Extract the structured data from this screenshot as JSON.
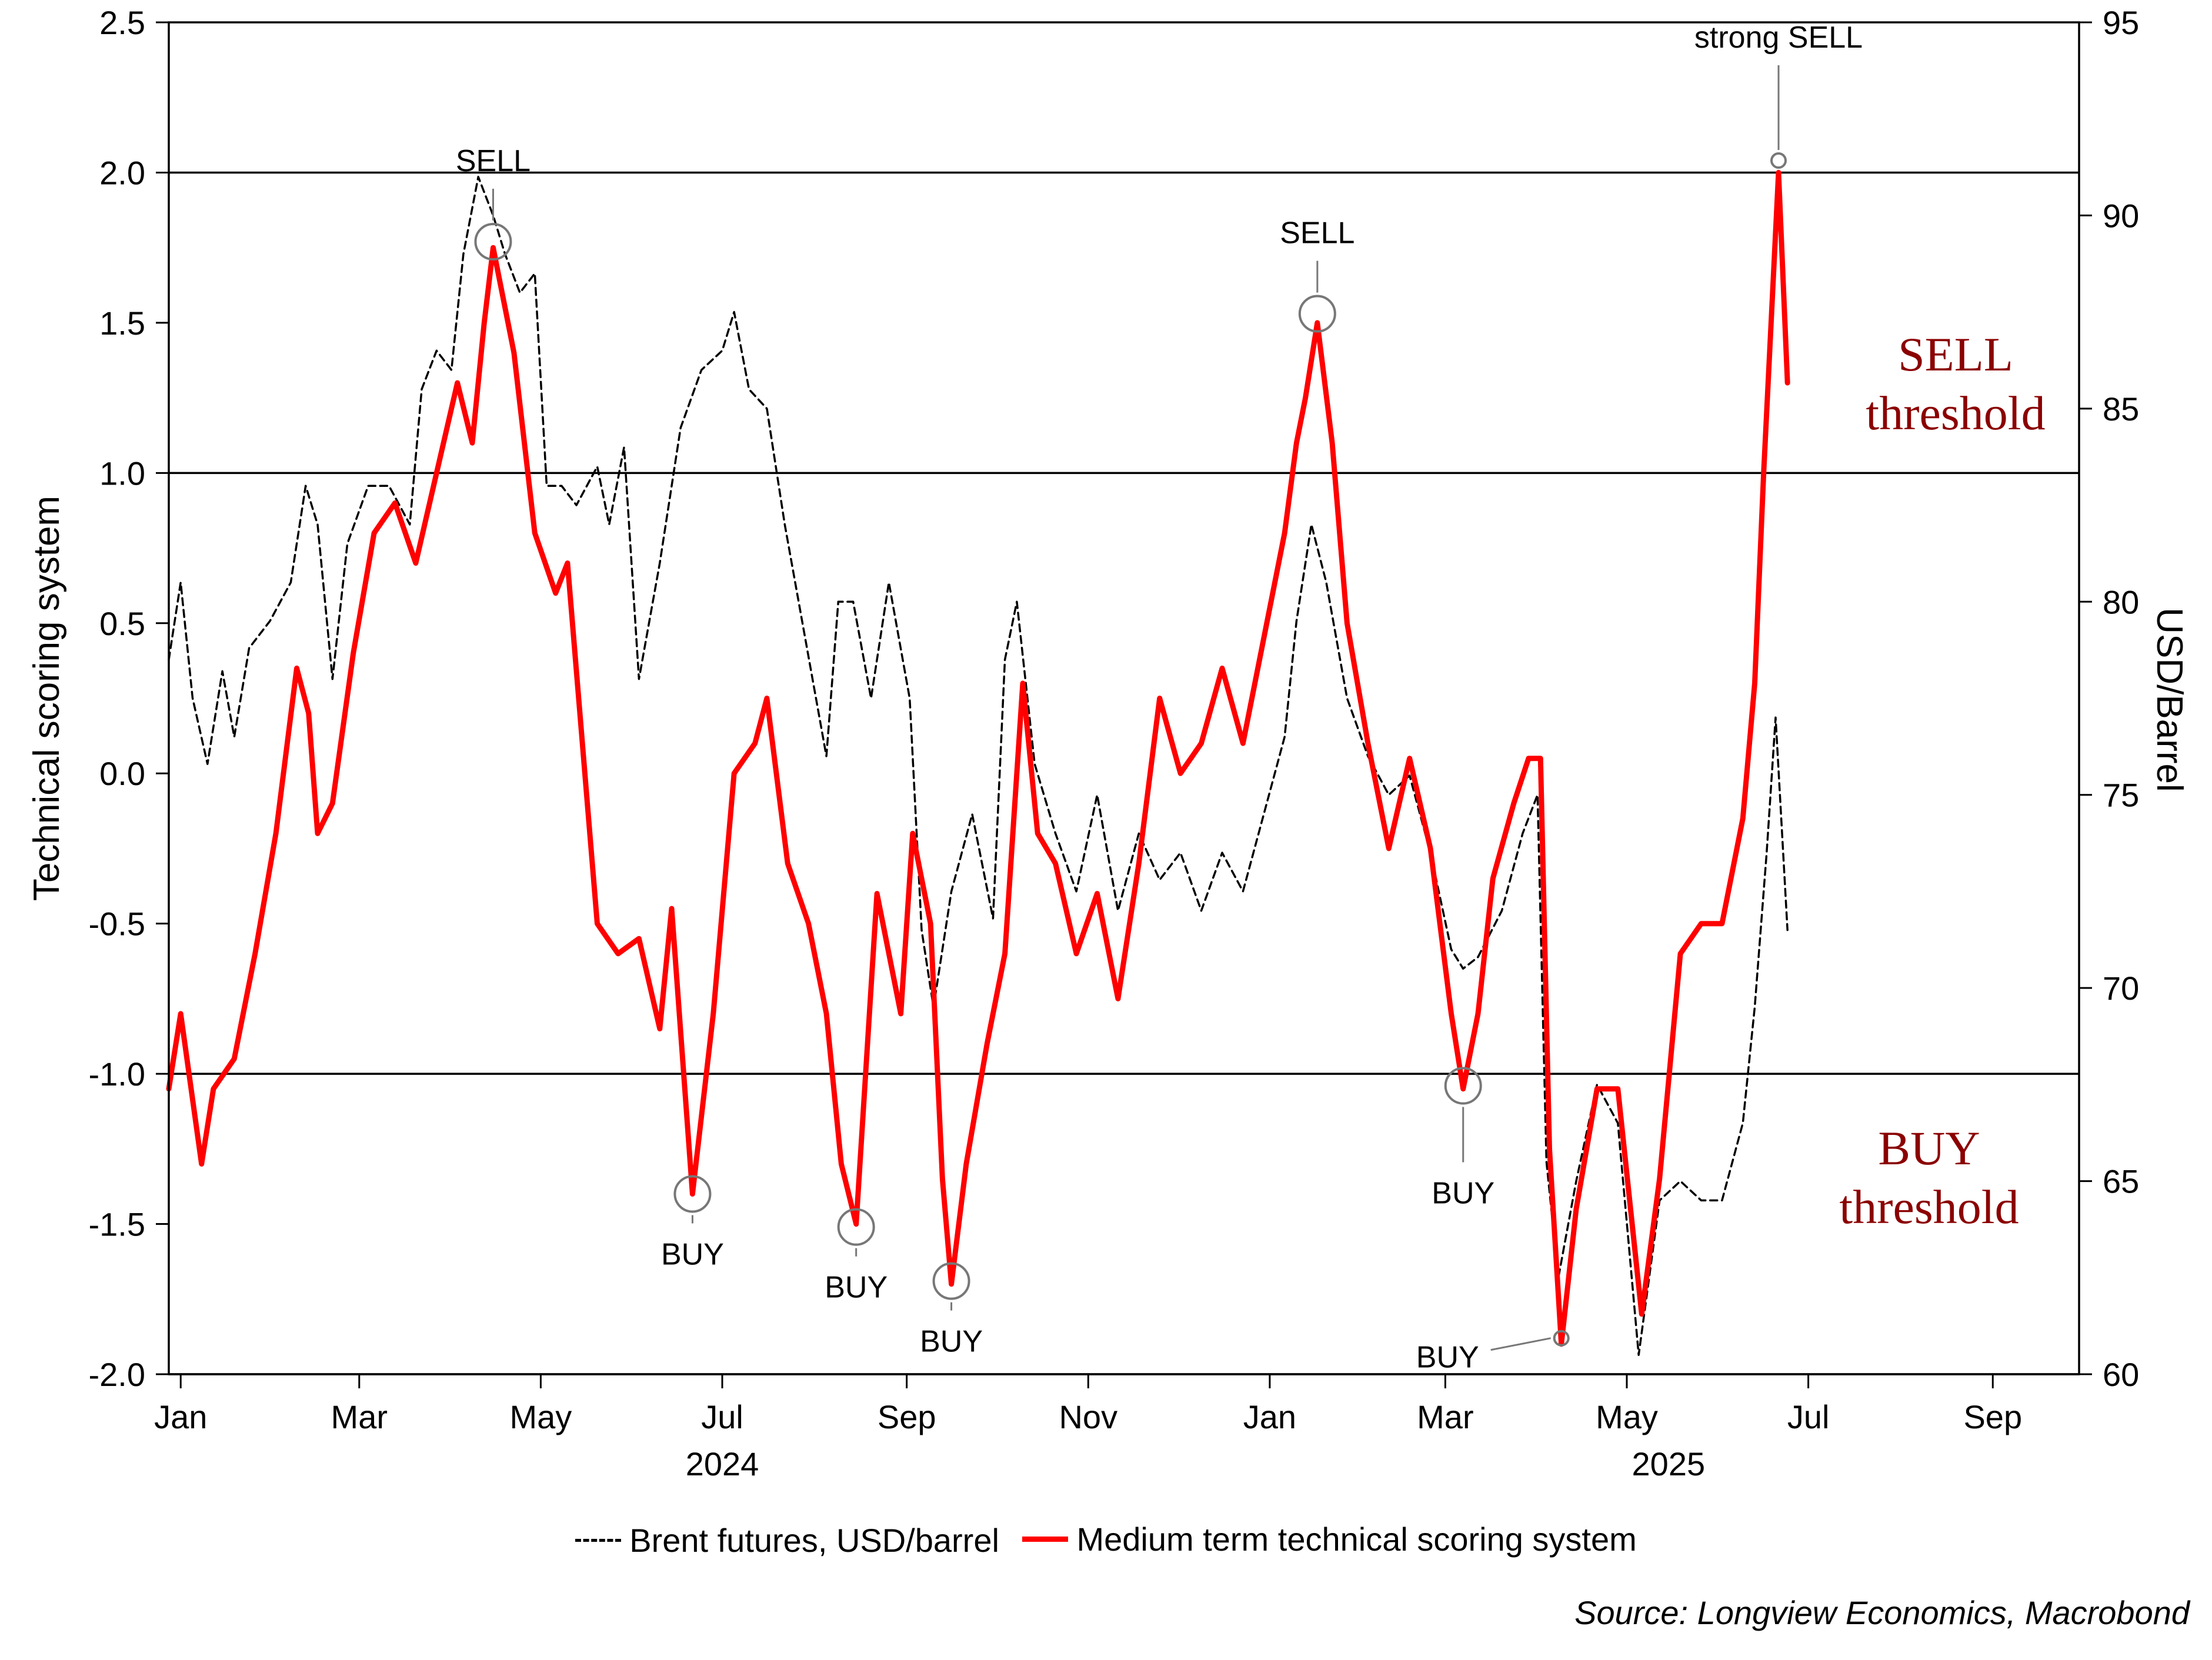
{
  "chart_data": {
    "type": "line",
    "left_axis": {
      "label": "Technical scoring system",
      "ticks": [
        "2.5",
        "2.0",
        "1.5",
        "1.0",
        "0.5",
        "0.0",
        "-0.5",
        "-1.0",
        "-1.5",
        "-2.0"
      ],
      "range": [
        -2.0,
        2.5
      ]
    },
    "right_axis": {
      "label": "USD/Barrel",
      "ticks": [
        "95",
        "90",
        "85",
        "80",
        "75",
        "70",
        "65",
        "60"
      ],
      "range": [
        60,
        95
      ]
    },
    "x_axis": {
      "range": [
        "2023-12-28",
        "2025-09-30"
      ],
      "month_ticks": [
        {
          "label": "Jan",
          "date": "2024-01-01"
        },
        {
          "label": "Mar",
          "date": "2024-03-01"
        },
        {
          "label": "May",
          "date": "2024-05-01"
        },
        {
          "label": "Jul",
          "date": "2024-07-01"
        },
        {
          "label": "Sep",
          "date": "2024-09-01"
        },
        {
          "label": "Nov",
          "date": "2024-11-01"
        },
        {
          "label": "Jan",
          "date": "2025-01-01"
        },
        {
          "label": "Mar",
          "date": "2025-03-01"
        },
        {
          "label": "May",
          "date": "2025-05-01"
        },
        {
          "label": "Jul",
          "date": "2025-07-01"
        },
        {
          "label": "Sep",
          "date": "2025-09-01"
        }
      ],
      "year_labels": [
        {
          "label": "2024",
          "date": "2024-07-01"
        },
        {
          "label": "2025",
          "date": "2025-05-15"
        }
      ]
    },
    "threshold_lines": [
      2.0,
      1.0,
      -1.0,
      -2.0
    ],
    "series": [
      {
        "name": "Brent futures, USD/barrel",
        "axis": "right",
        "color": "#000000",
        "style": "dashed",
        "points": [
          [
            "2023-12-28",
            78.5
          ],
          [
            "2024-01-01",
            80.5
          ],
          [
            "2024-01-05",
            77.5
          ],
          [
            "2024-01-10",
            75.8
          ],
          [
            "2024-01-15",
            78.2
          ],
          [
            "2024-01-19",
            76.5
          ],
          [
            "2024-01-24",
            78.8
          ],
          [
            "2024-01-31",
            79.5
          ],
          [
            "2024-02-07",
            80.5
          ],
          [
            "2024-02-12",
            83.0
          ],
          [
            "2024-02-16",
            82.0
          ],
          [
            "2024-02-21",
            78.0
          ],
          [
            "2024-02-26",
            81.5
          ],
          [
            "2024-03-04",
            83.0
          ],
          [
            "2024-03-11",
            83.0
          ],
          [
            "2024-03-18",
            82.0
          ],
          [
            "2024-03-22",
            85.5
          ],
          [
            "2024-03-27",
            86.5
          ],
          [
            "2024-04-01",
            86.0
          ],
          [
            "2024-04-05",
            89.0
          ],
          [
            "2024-04-10",
            91.0
          ],
          [
            "2024-04-15",
            90.0
          ],
          [
            "2024-04-19",
            89.0
          ],
          [
            "2024-04-24",
            88.0
          ],
          [
            "2024-04-29",
            88.5
          ],
          [
            "2024-05-03",
            83.0
          ],
          [
            "2024-05-08",
            83.0
          ],
          [
            "2024-05-13",
            82.5
          ],
          [
            "2024-05-20",
            83.5
          ],
          [
            "2024-05-24",
            82.0
          ],
          [
            "2024-05-29",
            84.0
          ],
          [
            "2024-06-03",
            78.0
          ],
          [
            "2024-06-10",
            81.0
          ],
          [
            "2024-06-17",
            84.5
          ],
          [
            "2024-06-24",
            86.0
          ],
          [
            "2024-07-01",
            86.5
          ],
          [
            "2024-07-05",
            87.5
          ],
          [
            "2024-07-10",
            85.5
          ],
          [
            "2024-07-16",
            85.0
          ],
          [
            "2024-07-22",
            82.0
          ],
          [
            "2024-07-29",
            79.0
          ],
          [
            "2024-08-05",
            76.0
          ],
          [
            "2024-08-09",
            80.0
          ],
          [
            "2024-08-14",
            80.0
          ],
          [
            "2024-08-20",
            77.5
          ],
          [
            "2024-08-26",
            80.5
          ],
          [
            "2024-09-02",
            77.5
          ],
          [
            "2024-09-06",
            71.5
          ],
          [
            "2024-09-10",
            69.5
          ],
          [
            "2024-09-16",
            72.5
          ],
          [
            "2024-09-23",
            74.5
          ],
          [
            "2024-09-30",
            71.8
          ],
          [
            "2024-10-04",
            78.5
          ],
          [
            "2024-10-08",
            80.0
          ],
          [
            "2024-10-14",
            75.8
          ],
          [
            "2024-10-21",
            74.0
          ],
          [
            "2024-10-28",
            72.5
          ],
          [
            "2024-11-04",
            75.0
          ],
          [
            "2024-11-11",
            72.0
          ],
          [
            "2024-11-18",
            74.0
          ],
          [
            "2024-11-25",
            72.8
          ],
          [
            "2024-12-02",
            73.5
          ],
          [
            "2024-12-09",
            72.0
          ],
          [
            "2024-12-16",
            73.5
          ],
          [
            "2024-12-23",
            72.5
          ],
          [
            "2024-12-30",
            74.5
          ],
          [
            "2025-01-06",
            76.5
          ],
          [
            "2025-01-10",
            79.5
          ],
          [
            "2025-01-15",
            82.0
          ],
          [
            "2025-01-20",
            80.5
          ],
          [
            "2025-01-27",
            77.5
          ],
          [
            "2025-02-03",
            76.0
          ],
          [
            "2025-02-10",
            75.0
          ],
          [
            "2025-02-17",
            75.5
          ],
          [
            "2025-02-24",
            73.5
          ],
          [
            "2025-03-03",
            71.0
          ],
          [
            "2025-03-07",
            70.5
          ],
          [
            "2025-03-12",
            70.8
          ],
          [
            "2025-03-20",
            72.0
          ],
          [
            "2025-03-27",
            74.0
          ],
          [
            "2025-04-01",
            75.0
          ],
          [
            "2025-04-04",
            65.5
          ],
          [
            "2025-04-08",
            62.5
          ],
          [
            "2025-04-14",
            65.0
          ],
          [
            "2025-04-21",
            67.5
          ],
          [
            "2025-04-28",
            66.5
          ],
          [
            "2025-05-05",
            60.5
          ],
          [
            "2025-05-12",
            64.5
          ],
          [
            "2025-05-19",
            65.0
          ],
          [
            "2025-05-26",
            64.5
          ],
          [
            "2025-06-02",
            64.5
          ],
          [
            "2025-06-09",
            66.5
          ],
          [
            "2025-06-13",
            69.5
          ],
          [
            "2025-06-17",
            73.5
          ],
          [
            "2025-06-20",
            77.0
          ],
          [
            "2025-06-24",
            71.5
          ]
        ]
      },
      {
        "name": "Medium term technical scoring system",
        "axis": "left",
        "color": "#ff0000",
        "style": "solid",
        "points": [
          [
            "2023-12-28",
            -1.05
          ],
          [
            "2024-01-01",
            -0.8
          ],
          [
            "2024-01-08",
            -1.3
          ],
          [
            "2024-01-12",
            -1.05
          ],
          [
            "2024-01-19",
            -0.95
          ],
          [
            "2024-01-26",
            -0.6
          ],
          [
            "2024-02-02",
            -0.2
          ],
          [
            "2024-02-09",
            0.35
          ],
          [
            "2024-02-13",
            0.2
          ],
          [
            "2024-02-16",
            -0.2
          ],
          [
            "2024-02-21",
            -0.1
          ],
          [
            "2024-02-28",
            0.4
          ],
          [
            "2024-03-06",
            0.8
          ],
          [
            "2024-03-13",
            0.9
          ],
          [
            "2024-03-20",
            0.7
          ],
          [
            "2024-03-27",
            1.0
          ],
          [
            "2024-04-03",
            1.3
          ],
          [
            "2024-04-08",
            1.1
          ],
          [
            "2024-04-12",
            1.5
          ],
          [
            "2024-04-15",
            1.75
          ],
          [
            "2024-04-22",
            1.4
          ],
          [
            "2024-04-29",
            0.8
          ],
          [
            "2024-05-06",
            0.6
          ],
          [
            "2024-05-10",
            0.7
          ],
          [
            "2024-05-20",
            -0.5
          ],
          [
            "2024-05-27",
            -0.6
          ],
          [
            "2024-06-03",
            -0.55
          ],
          [
            "2024-06-10",
            -0.85
          ],
          [
            "2024-06-14",
            -0.45
          ],
          [
            "2024-06-21",
            -1.4
          ],
          [
            "2024-06-28",
            -0.8
          ],
          [
            "2024-07-05",
            0.0
          ],
          [
            "2024-07-12",
            0.1
          ],
          [
            "2024-07-16",
            0.25
          ],
          [
            "2024-07-23",
            -0.3
          ],
          [
            "2024-07-30",
            -0.5
          ],
          [
            "2024-08-05",
            -0.8
          ],
          [
            "2024-08-10",
            -1.3
          ],
          [
            "2024-08-15",
            -1.5
          ],
          [
            "2024-08-22",
            -0.4
          ],
          [
            "2024-08-30",
            -0.8
          ],
          [
            "2024-09-03",
            -0.2
          ],
          [
            "2024-09-09",
            -0.5
          ],
          [
            "2024-09-13",
            -1.35
          ],
          [
            "2024-09-16",
            -1.7
          ],
          [
            "2024-09-21",
            -1.3
          ],
          [
            "2024-09-28",
            -0.9
          ],
          [
            "2024-10-04",
            -0.6
          ],
          [
            "2024-10-10",
            0.3
          ],
          [
            "2024-10-15",
            -0.2
          ],
          [
            "2024-10-21",
            -0.3
          ],
          [
            "2024-10-28",
            -0.6
          ],
          [
            "2024-11-04",
            -0.4
          ],
          [
            "2024-11-11",
            -0.75
          ],
          [
            "2024-11-18",
            -0.3
          ],
          [
            "2024-11-25",
            0.25
          ],
          [
            "2024-12-02",
            0.0
          ],
          [
            "2024-12-09",
            0.1
          ],
          [
            "2024-12-16",
            0.35
          ],
          [
            "2024-12-23",
            0.1
          ],
          [
            "2024-12-30",
            0.45
          ],
          [
            "2025-01-06",
            0.8
          ],
          [
            "2025-01-10",
            1.1
          ],
          [
            "2025-01-13",
            1.25
          ],
          [
            "2025-01-17",
            1.5
          ],
          [
            "2025-01-22",
            1.1
          ],
          [
            "2025-01-27",
            0.5
          ],
          [
            "2025-02-03",
            0.1
          ],
          [
            "2025-02-10",
            -0.25
          ],
          [
            "2025-02-17",
            0.05
          ],
          [
            "2025-02-24",
            -0.25
          ],
          [
            "2025-03-03",
            -0.8
          ],
          [
            "2025-03-07",
            -1.05
          ],
          [
            "2025-03-12",
            -0.8
          ],
          [
            "2025-03-17",
            -0.35
          ],
          [
            "2025-03-24",
            -0.1
          ],
          [
            "2025-03-29",
            0.05
          ],
          [
            "2025-04-02",
            0.05
          ],
          [
            "2025-04-05",
            -1.25
          ],
          [
            "2025-04-09",
            -1.9
          ],
          [
            "2025-04-14",
            -1.45
          ],
          [
            "2025-04-21",
            -1.05
          ],
          [
            "2025-04-28",
            -1.05
          ],
          [
            "2025-05-06",
            -1.8
          ],
          [
            "2025-05-12",
            -1.35
          ],
          [
            "2025-05-19",
            -0.6
          ],
          [
            "2025-05-26",
            -0.5
          ],
          [
            "2025-06-02",
            -0.5
          ],
          [
            "2025-06-09",
            -0.15
          ],
          [
            "2025-06-13",
            0.3
          ],
          [
            "2025-06-16",
            1.0
          ],
          [
            "2025-06-19",
            1.6
          ],
          [
            "2025-06-21",
            2.0
          ],
          [
            "2025-06-24",
            1.3
          ]
        ]
      }
    ],
    "annotations": [
      {
        "text": "SELL",
        "date": "2024-04-15",
        "value": 1.77
      },
      {
        "text": "BUY",
        "date": "2024-06-21",
        "value": -1.4
      },
      {
        "text": "BUY",
        "date": "2024-08-15",
        "value": -1.51
      },
      {
        "text": "BUY",
        "date": "2024-09-16",
        "value": -1.69
      },
      {
        "text": "SELL",
        "date": "2025-01-17",
        "value": 1.53
      },
      {
        "text": "BUY",
        "date": "2025-03-07",
        "value": -1.04
      },
      {
        "text": "BUY",
        "date": "2025-04-09",
        "value": -1.88
      },
      {
        "text": "strong SELL",
        "date": "2025-06-21",
        "value": 2.04
      }
    ],
    "zone_labels": [
      {
        "line1": "SELL",
        "line2": "threshold",
        "color": "#8b0000"
      },
      {
        "line1": "BUY",
        "line2": "threshold",
        "color": "#8b0000"
      }
    ]
  },
  "legend": {
    "brent_label": "Brent futures, USD/barrel",
    "score_label": "Medium term technical scoring system"
  },
  "source_text": "Source: Longview Economics, Macrobond"
}
